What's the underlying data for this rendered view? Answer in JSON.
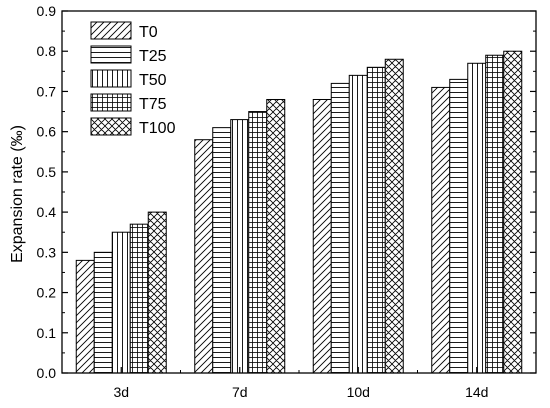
{
  "chart_data": {
    "type": "bar",
    "ylabel": "Expansion rate (‰)",
    "xlabel": "",
    "ylim": [
      0,
      0.9
    ],
    "yticks": [
      "0.0",
      "0.1",
      "0.2",
      "0.3",
      "0.4",
      "0.5",
      "0.6",
      "0.7",
      "0.8",
      "0.9"
    ],
    "categories": [
      "3d",
      "7d",
      "10d",
      "14d"
    ],
    "series": [
      {
        "name": "T0",
        "pattern": "diagonal-hatch",
        "values": [
          0.28,
          0.58,
          0.68,
          0.71
        ]
      },
      {
        "name": "T25",
        "pattern": "horizontal-hatch",
        "values": [
          0.3,
          0.61,
          0.72,
          0.73
        ]
      },
      {
        "name": "T50",
        "pattern": "vertical-hatch",
        "values": [
          0.35,
          0.63,
          0.74,
          0.77
        ]
      },
      {
        "name": "T75",
        "pattern": "grid-hatch",
        "values": [
          0.37,
          0.65,
          0.76,
          0.79
        ]
      },
      {
        "name": "T100",
        "pattern": "cross-hatch",
        "values": [
          0.4,
          0.68,
          0.78,
          0.8
        ]
      }
    ],
    "legend_position": "top-left",
    "grid": false,
    "bar_fill": "#ffffff",
    "stroke_color": "#000000"
  }
}
